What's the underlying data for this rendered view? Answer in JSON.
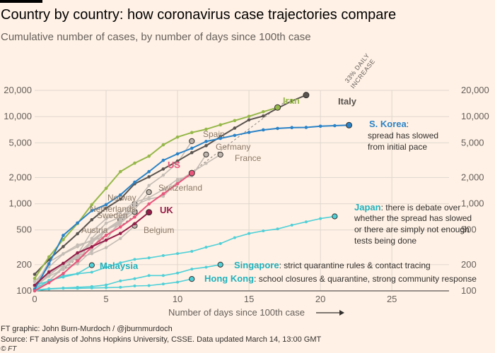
{
  "header": {
    "title": "Country by country: how coronavirus case trajectories compare",
    "subtitle": "Cumulative number of cases, by number of days since 100th case"
  },
  "footer": {
    "line1": "FT graphic: John Burn-Murdoch / @jburnmurdoch",
    "line2": "Source: FT analysis of Johns Hopkins University, CSSE. Data updated March 14, 13:00 GMT",
    "line3": "© FT"
  },
  "chart_data": {
    "type": "line",
    "title": "Country by country: how coronavirus case trajectories compare",
    "subtitle": "Cumulative number of cases, by number of days since 100th case",
    "xlabel": "Number of days since 100th case",
    "ylabel": "",
    "yscale": "log",
    "xlim": [
      0,
      29
    ],
    "ylim": [
      100,
      20000
    ],
    "xticks": [
      0,
      5,
      10,
      15,
      20,
      25
    ],
    "yticks": [
      100,
      200,
      500,
      1000,
      2000,
      5000,
      10000,
      20000
    ],
    "ytick_labels": [
      "100",
      "200",
      "500",
      "1,000",
      "2,000",
      "5,000",
      "10,000",
      "20,000"
    ],
    "reference_line": {
      "label_line1": "33% DAILY",
      "label_line2": "INCREASE",
      "start": [
        0,
        100
      ],
      "daily_growth": 1.33
    },
    "colors": {
      "grey": "#c4bcb5",
      "greyText": "#8c7a69",
      "italy": "#5a5450",
      "iran": "#96b84a",
      "korea": "#2a83c8",
      "us": "#e9557c",
      "uk": "#961d4a",
      "cyan": "#4fd0d8",
      "cyanText": "#1fb2bd",
      "grid": "#e0d7cf",
      "axis": "#33302e"
    },
    "series": [
      {
        "name": "Austria",
        "group": "grey",
        "values": [
          [
            0,
            104
          ],
          [
            1,
            131
          ],
          [
            2,
            182
          ],
          [
            3,
            246
          ],
          [
            4,
            302
          ],
          [
            5,
            504
          ],
          [
            6,
            655
          ]
        ]
      },
      {
        "name": "Belgium",
        "group": "grey",
        "values": [
          [
            0,
            109
          ],
          [
            1,
            169
          ],
          [
            2,
            200
          ],
          [
            3,
            239
          ],
          [
            4,
            267
          ],
          [
            5,
            314
          ],
          [
            6,
            399
          ],
          [
            7,
            559
          ]
        ]
      },
      {
        "name": "Sweden",
        "group": "grey",
        "values": [
          [
            0,
            101
          ],
          [
            1,
            161
          ],
          [
            2,
            203
          ],
          [
            3,
            248
          ],
          [
            4,
            355
          ],
          [
            5,
            500
          ],
          [
            6,
            599
          ],
          [
            7,
            814
          ]
        ]
      },
      {
        "name": "Netherlands",
        "group": "grey",
        "values": [
          [
            0,
            128
          ],
          [
            1,
            188
          ],
          [
            2,
            265
          ],
          [
            3,
            321
          ],
          [
            4,
            382
          ],
          [
            5,
            503
          ],
          [
            6,
            614
          ],
          [
            7,
            804
          ]
        ]
      },
      {
        "name": "Norway",
        "group": "grey",
        "values": [
          [
            0,
            113
          ],
          [
            1,
            147
          ],
          [
            2,
            176
          ],
          [
            3,
            205
          ],
          [
            4,
            400
          ],
          [
            5,
            598
          ],
          [
            6,
            702
          ],
          [
            7,
            996
          ]
        ]
      },
      {
        "name": "Switzerland",
        "group": "grey",
        "values": [
          [
            0,
            114
          ],
          [
            1,
            214
          ],
          [
            2,
            268
          ],
          [
            3,
            337
          ],
          [
            4,
            374
          ],
          [
            5,
            491
          ],
          [
            6,
            652
          ],
          [
            7,
            858
          ],
          [
            8,
            1359
          ]
        ]
      },
      {
        "name": "Germany",
        "group": "grey",
        "values": [
          [
            0,
            130
          ],
          [
            1,
            159
          ],
          [
            2,
            196
          ],
          [
            3,
            262
          ],
          [
            4,
            482
          ],
          [
            5,
            670
          ],
          [
            6,
            799
          ],
          [
            7,
            1040
          ],
          [
            8,
            1176
          ],
          [
            9,
            1457
          ],
          [
            10,
            1908
          ],
          [
            11,
            2078
          ],
          [
            12,
            3675
          ]
        ]
      },
      {
        "name": "France",
        "group": "grey",
        "values": [
          [
            0,
            100
          ],
          [
            1,
            130
          ],
          [
            2,
            191
          ],
          [
            3,
            204
          ],
          [
            4,
            288
          ],
          [
            5,
            380
          ],
          [
            6,
            656
          ],
          [
            7,
            957
          ],
          [
            8,
            1134
          ],
          [
            9,
            1217
          ],
          [
            10,
            1792
          ],
          [
            11,
            2289
          ],
          [
            12,
            2903
          ],
          [
            13,
            3661
          ]
        ]
      },
      {
        "name": "Spain",
        "group": "grey",
        "values": [
          [
            0,
            114
          ],
          [
            1,
            151
          ],
          [
            2,
            200
          ],
          [
            3,
            261
          ],
          [
            4,
            374
          ],
          [
            5,
            430
          ],
          [
            6,
            589
          ],
          [
            7,
            999
          ],
          [
            8,
            1622
          ],
          [
            9,
            2128
          ],
          [
            10,
            2950
          ],
          [
            11,
            5232
          ]
        ]
      },
      {
        "name": "Italy",
        "group": "italy",
        "values": [
          [
            0,
            155
          ],
          [
            1,
            229
          ],
          [
            2,
            322
          ],
          [
            3,
            453
          ],
          [
            4,
            655
          ],
          [
            5,
            888
          ],
          [
            6,
            1128
          ],
          [
            7,
            1694
          ],
          [
            8,
            2036
          ],
          [
            9,
            2502
          ],
          [
            10,
            3089
          ],
          [
            11,
            3858
          ],
          [
            12,
            4636
          ],
          [
            13,
            5883
          ],
          [
            14,
            7375
          ],
          [
            15,
            9172
          ],
          [
            16,
            10149
          ],
          [
            17,
            12462
          ],
          [
            18,
            15113
          ],
          [
            19,
            17660
          ]
        ]
      },
      {
        "name": "Iran",
        "group": "iran",
        "values": [
          [
            0,
            139
          ],
          [
            1,
            245
          ],
          [
            2,
            388
          ],
          [
            3,
            593
          ],
          [
            4,
            978
          ],
          [
            5,
            1501
          ],
          [
            6,
            2336
          ],
          [
            7,
            2922
          ],
          [
            8,
            3513
          ],
          [
            9,
            4747
          ],
          [
            10,
            5823
          ],
          [
            11,
            6566
          ],
          [
            12,
            7161
          ],
          [
            13,
            8042
          ],
          [
            14,
            9000
          ],
          [
            15,
            10075
          ],
          [
            16,
            11364
          ],
          [
            17,
            12729
          ]
        ]
      },
      {
        "name": "S. Korea",
        "group": "korea",
        "values": [
          [
            0,
            104
          ],
          [
            1,
            204
          ],
          [
            2,
            433
          ],
          [
            3,
            602
          ],
          [
            4,
            833
          ],
          [
            5,
            977
          ],
          [
            6,
            1261
          ],
          [
            7,
            1766
          ],
          [
            8,
            2337
          ],
          [
            9,
            3150
          ],
          [
            10,
            3736
          ],
          [
            11,
            4335
          ],
          [
            12,
            5186
          ],
          [
            13,
            5621
          ],
          [
            14,
            6088
          ],
          [
            15,
            6593
          ],
          [
            16,
            7041
          ],
          [
            17,
            7314
          ],
          [
            18,
            7478
          ],
          [
            19,
            7513
          ],
          [
            20,
            7755
          ],
          [
            21,
            7869
          ],
          [
            22,
            7979
          ]
        ]
      },
      {
        "name": "US",
        "group": "us",
        "values": [
          [
            0,
            100
          ],
          [
            1,
            124
          ],
          [
            2,
            158
          ],
          [
            3,
            221
          ],
          [
            4,
            319
          ],
          [
            5,
            435
          ],
          [
            6,
            541
          ],
          [
            7,
            704
          ],
          [
            8,
            994
          ],
          [
            9,
            1301
          ],
          [
            10,
            1697
          ],
          [
            11,
            2247
          ]
        ]
      },
      {
        "name": "UK",
        "group": "uk",
        "values": [
          [
            0,
            116
          ],
          [
            1,
            164
          ],
          [
            2,
            207
          ],
          [
            3,
            273
          ],
          [
            4,
            321
          ],
          [
            5,
            382
          ],
          [
            6,
            456
          ],
          [
            7,
            590
          ],
          [
            8,
            798
          ]
        ]
      },
      {
        "name": "Japan",
        "group": "cyan",
        "values": [
          [
            0,
            105
          ],
          [
            1,
            132
          ],
          [
            2,
            144
          ],
          [
            3,
            157
          ],
          [
            4,
            164
          ],
          [
            5,
            186
          ],
          [
            6,
            210
          ],
          [
            7,
            230
          ],
          [
            8,
            239
          ],
          [
            9,
            254
          ],
          [
            10,
            268
          ],
          [
            11,
            284
          ],
          [
            12,
            317
          ],
          [
            13,
            349
          ],
          [
            14,
            408
          ],
          [
            15,
            455
          ],
          [
            16,
            488
          ],
          [
            17,
            514
          ],
          [
            18,
            568
          ],
          [
            19,
            620
          ],
          [
            20,
            675
          ],
          [
            21,
            716
          ]
        ]
      },
      {
        "name": "Malaysia",
        "group": "cyan",
        "values": [
          [
            0,
            117
          ],
          [
            1,
            129
          ],
          [
            2,
            149
          ],
          [
            3,
            158
          ],
          [
            4,
            197
          ]
        ]
      },
      {
        "name": "Singapore",
        "group": "cyan",
        "values": [
          [
            0,
            102
          ],
          [
            1,
            106
          ],
          [
            2,
            108
          ],
          [
            3,
            110
          ],
          [
            4,
            112
          ],
          [
            5,
            117
          ],
          [
            6,
            130
          ],
          [
            7,
            138
          ],
          [
            8,
            150
          ],
          [
            9,
            150
          ],
          [
            10,
            160
          ],
          [
            11,
            178
          ],
          [
            12,
            187
          ],
          [
            13,
            200
          ]
        ]
      },
      {
        "name": "Hong Kong",
        "group": "cyan",
        "values": [
          [
            0,
            100
          ],
          [
            1,
            105
          ],
          [
            2,
            107
          ],
          [
            3,
            107
          ],
          [
            4,
            108
          ],
          [
            5,
            109
          ],
          [
            6,
            110
          ],
          [
            7,
            114
          ],
          [
            8,
            115
          ],
          [
            9,
            120
          ],
          [
            10,
            126
          ],
          [
            11,
            137
          ]
        ]
      }
    ],
    "labels": {
      "spain": "Spain",
      "germany": "Germany",
      "france": "France",
      "norway": "Norway",
      "netherlands": "Netherlands",
      "sweden": "Sweden",
      "austria": "Austria",
      "switzerland": "Switzerland",
      "belgium": "Belgium",
      "us": "US",
      "uk": "UK",
      "iran": "Iran",
      "italy": "Italy",
      "korea": "S. Korea",
      "japan": "Japan",
      "malaysia": "Malaysia",
      "singapore": "Singapore",
      "hongkong": "Hong Kong"
    },
    "annotations": {
      "korea_colon": ":",
      "korea_line1": "spread has slowed",
      "korea_line2": "from initial pace",
      "japan_line1": ": there is debate over",
      "japan_line2": "whether the spread has slowed",
      "japan_line3": "or there are simply not enough",
      "japan_line4": "tests being done",
      "singapore": ": strict quarantine rules & contact tracing",
      "hongkong": ": school closures & quarantine, strong community response"
    }
  }
}
